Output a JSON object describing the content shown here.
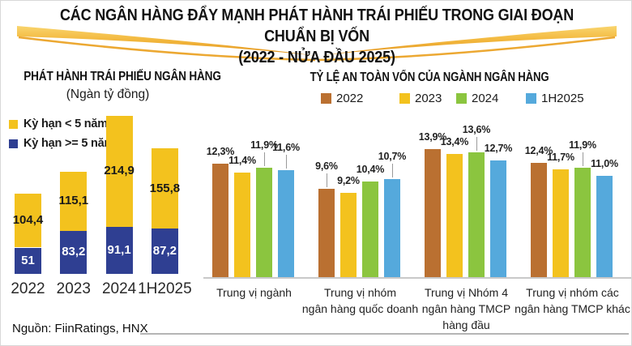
{
  "header": {
    "title_line1": "CÁC NGÂN HÀNG ĐẨY MẠNH PHÁT HÀNH TRÁI PHIẾU TRONG GIAI ĐOẠN CHUẨN BỊ VỐN",
    "title_line2": "(2022 - NỬA ĐẦU 2025)"
  },
  "source_note": "Nguồn: FiinRatings, HNX",
  "colors": {
    "gold_ribbon": "#F3B93F",
    "short_term_yellow": "#F3C21E",
    "long_term_blue": "#2F3F92",
    "brown_2022": "#BA7031",
    "yellow_2023": "#F3C21E",
    "green_2024": "#8BC53F",
    "blue_1h2025": "#55A9DC",
    "axis_gray": "#c9c9c9"
  },
  "chart_data": [
    {
      "type": "bar",
      "stacked": true,
      "title": "PHÁT HÀNH TRÁI PHIẾU NGÂN HÀNG",
      "subtitle": "(Ngàn tỷ đồng)",
      "unit": "Ngàn tỷ đồng",
      "categories": [
        "2022",
        "2023",
        "2024",
        "1H2025"
      ],
      "series": [
        {
          "name": "Kỳ hạn < 5 năm",
          "color": "#F3C21E",
          "values": [
            104.4,
            115.1,
            214.9,
            155.8
          ],
          "labels": [
            "104,4",
            "115,1",
            "214,9",
            "155,8"
          ]
        },
        {
          "name": "Kỳ hạn >= 5 năm",
          "color": "#2F3F92",
          "values": [
            51,
            83.2,
            91.1,
            87.2
          ],
          "labels": [
            "51",
            "83,2",
            "91,1",
            "87,2"
          ]
        }
      ],
      "totals": [
        155.4,
        198.3,
        306.0,
        243.0
      ],
      "ylim": [
        0,
        310
      ],
      "grid": false,
      "legend_position": "left"
    },
    {
      "type": "bar",
      "grouped": true,
      "title": "TỶ LỆ AN TOÀN VỐN CỦA NGÀNH NGÂN HÀNG",
      "unit": "%",
      "categories": [
        "Trung vị ngành",
        "Trung vị nhóm ngân hàng quốc doanh",
        "Trung vị Nhóm 4 ngân hàng TMCP hàng đầu",
        "Trung vị nhóm các ngân hàng TMCP khác"
      ],
      "categories_lines": [
        [
          "Trung vị ngành"
        ],
        [
          "Trung vị nhóm",
          "ngân hàng quốc doanh"
        ],
        [
          "Trung vị Nhóm 4",
          "ngân hàng TMCP",
          "hàng đầu"
        ],
        [
          "Trung vị nhóm các",
          "ngân hàng TMCP khác"
        ]
      ],
      "series": [
        {
          "name": "2022",
          "color": "#BA7031",
          "values": [
            12.3,
            9.6,
            13.9,
            12.4
          ],
          "labels": [
            "12,3%",
            "9,6%",
            "13,9%",
            "12,4%"
          ]
        },
        {
          "name": "2023",
          "color": "#F3C21E",
          "values": [
            11.4,
            9.2,
            13.4,
            11.7
          ],
          "labels": [
            "11,4%",
            "9,2%",
            "13,4%",
            "11,7%"
          ]
        },
        {
          "name": "2024",
          "color": "#8BC53F",
          "values": [
            11.9,
            10.4,
            13.6,
            11.9
          ],
          "labels": [
            "11,9%",
            "10,4%",
            "13,6%",
            "11,9%"
          ]
        },
        {
          "name": "1H2025",
          "color": "#55A9DC",
          "values": [
            11.6,
            10.7,
            12.7,
            11.0
          ],
          "labels": [
            "11,6%",
            "10,7%",
            "12,7%",
            "11,0%"
          ]
        }
      ],
      "label_raised": [
        [
          0,
          0,
          1,
          1
        ],
        [
          1,
          0,
          0,
          1
        ],
        [
          0,
          0,
          1,
          0
        ],
        [
          0,
          0,
          1,
          0
        ]
      ],
      "ylim": [
        0,
        14
      ],
      "grid": false,
      "legend_position": "top"
    }
  ]
}
